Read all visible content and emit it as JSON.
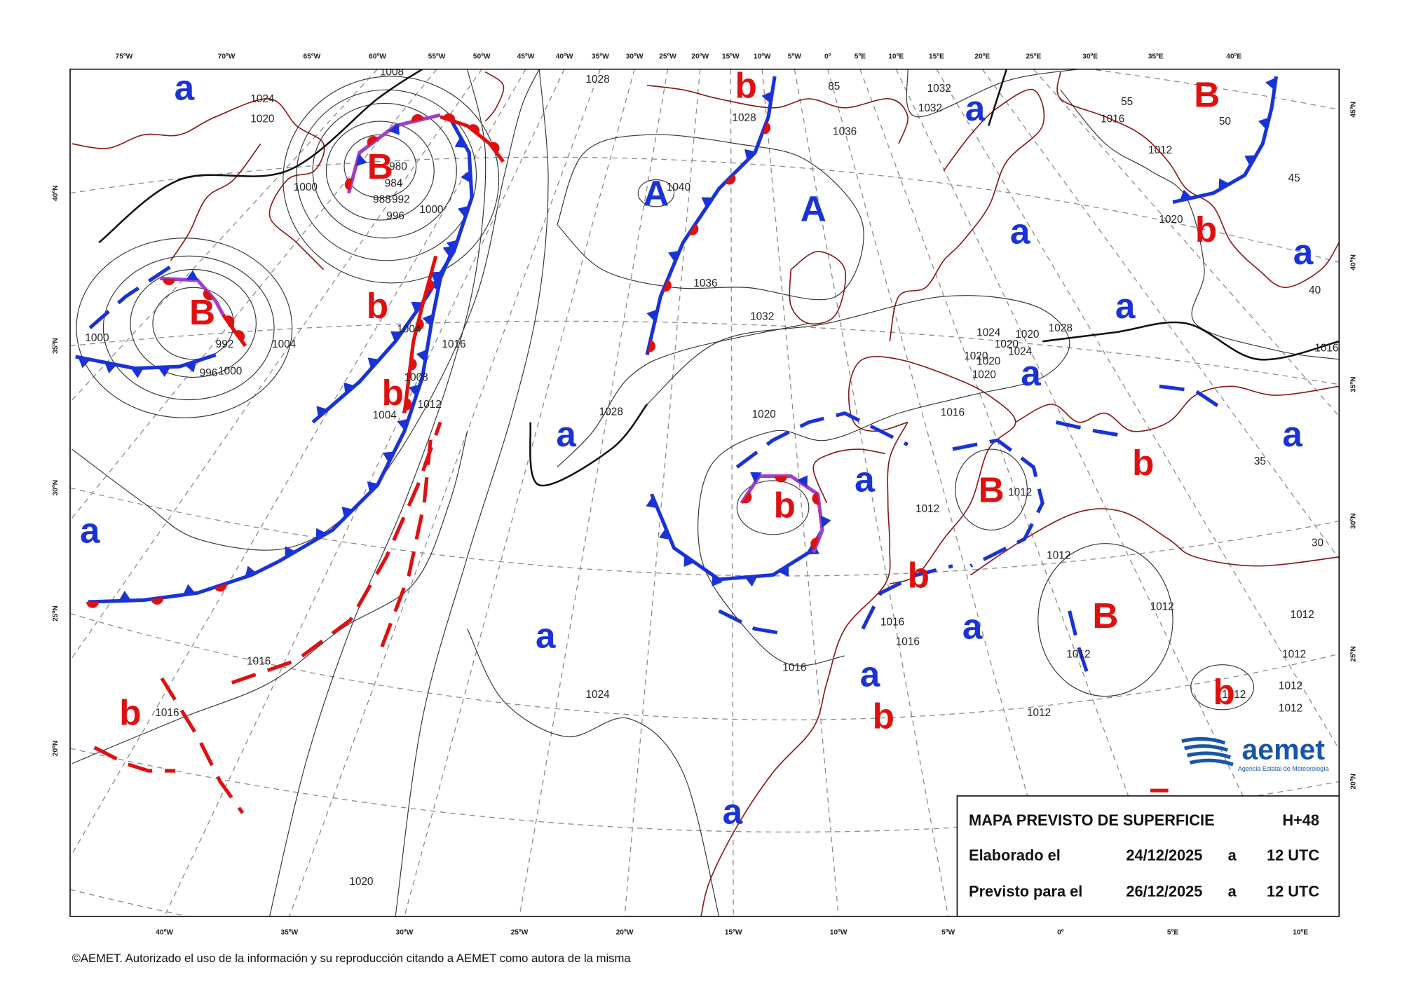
{
  "map": {
    "lon_labels_top": [
      "75ºW",
      "70ºW",
      "65ºW",
      "60ºW",
      "55ºW",
      "50ºW",
      "45ºW",
      "40ºW",
      "35ºW",
      "30ºW",
      "25ºW",
      "20ºW",
      "15ºW",
      "10ºW",
      "5ºW",
      "0º",
      "5ºE",
      "10ºE",
      "15ºE",
      "20ºE",
      "25ºE",
      "30ºE",
      "35ºE",
      "40ºE"
    ],
    "lon_labels_bottom": [
      "40ºW",
      "35ºW",
      "30ºW",
      "25ºW",
      "20ºW",
      "15ºW",
      "10ºW",
      "5ºW",
      "0º",
      "5ºE",
      "10ºE"
    ],
    "lat_labels_left": [
      "40ºN",
      "35ºN",
      "30ºN",
      "25ºN",
      "20ºN"
    ],
    "lat_labels_right": [
      "45ºN",
      "40ºN",
      "35ºN",
      "30ºN",
      "25ºN",
      "20ºN"
    ],
    "pressure_centers": [
      {
        "label": "a",
        "color": "#1a33d6"
      },
      {
        "label": "B",
        "color": "#e01010"
      },
      {
        "label": "B",
        "color": "#e01010"
      },
      {
        "label": "b",
        "color": "#e01010"
      },
      {
        "label": "b",
        "color": "#e01010"
      },
      {
        "label": "A",
        "color": "#1a33d6"
      },
      {
        "label": "A",
        "color": "#1a33d6"
      },
      {
        "label": "b",
        "color": "#e01010"
      },
      {
        "label": "a",
        "color": "#1a33d6"
      },
      {
        "label": "a",
        "color": "#1a33d6"
      },
      {
        "label": "a",
        "color": "#1a33d6"
      },
      {
        "label": "a",
        "color": "#1a33d6"
      },
      {
        "label": "B",
        "color": "#e01010"
      },
      {
        "label": "b",
        "color": "#e01010"
      },
      {
        "label": "a",
        "color": "#1a33d6"
      },
      {
        "label": "a",
        "color": "#1a33d6"
      },
      {
        "label": "b",
        "color": "#e01010"
      },
      {
        "label": "a",
        "color": "#1a33d6"
      },
      {
        "label": "a",
        "color": "#1a33d6"
      },
      {
        "label": "a",
        "color": "#1a33d6"
      },
      {
        "label": "b",
        "color": "#e01010"
      },
      {
        "label": "B",
        "color": "#e01010"
      },
      {
        "label": "b",
        "color": "#e01010"
      },
      {
        "label": "B",
        "color": "#e01010"
      },
      {
        "label": "a",
        "color": "#1a33d6"
      },
      {
        "label": "a",
        "color": "#1a33d6"
      },
      {
        "label": "a",
        "color": "#1a33d6"
      },
      {
        "label": "b",
        "color": "#e01010"
      },
      {
        "label": "b",
        "color": "#e01010"
      },
      {
        "label": "b",
        "color": "#e01010"
      },
      {
        "label": "a",
        "color": "#1a33d6"
      }
    ],
    "isobar_labels": [
      "1028",
      "1024",
      "1020",
      "1008",
      "980",
      "984",
      "988",
      "992",
      "996",
      "1000",
      "1000",
      "1036",
      "1040",
      "1028",
      "1032",
      "1032",
      "1016",
      "1012",
      "1020",
      "1036",
      "1032",
      "1004",
      "1000",
      "992",
      "996",
      "1000",
      "1004",
      "1016",
      "1008",
      "1012",
      "1004",
      "1028",
      "1020",
      "1016",
      "1024",
      "1020",
      "1028",
      "1020",
      "1024",
      "1020",
      "1020",
      "1020",
      "1012",
      "1012",
      "1012",
      "1012",
      "1012",
      "1012",
      "1012",
      "1012",
      "1012",
      "1012",
      "1012",
      "1016",
      "1016",
      "1016",
      "1016",
      "1016",
      "1024",
      "1020",
      "55",
      "50",
      "45",
      "40",
      "35",
      "30",
      "85",
      "1016"
    ],
    "info_box": {
      "title": "MAPA PREVISTO DE SUPERFICIE",
      "lead_time": "H+48",
      "rows": [
        [
          "Elaborado el",
          "24/12/2025",
          "a",
          "12 UTC"
        ],
        [
          "Previsto para el",
          "26/12/2025",
          "a",
          "12 UTC"
        ]
      ]
    },
    "logo": {
      "name": "aemet",
      "subtitle": "Agencia Estatal de Meteorología"
    },
    "copyright": "©AEMET. Autorizado el uso de la información y su reproducción citando a AEMET como autora de la misma"
  }
}
